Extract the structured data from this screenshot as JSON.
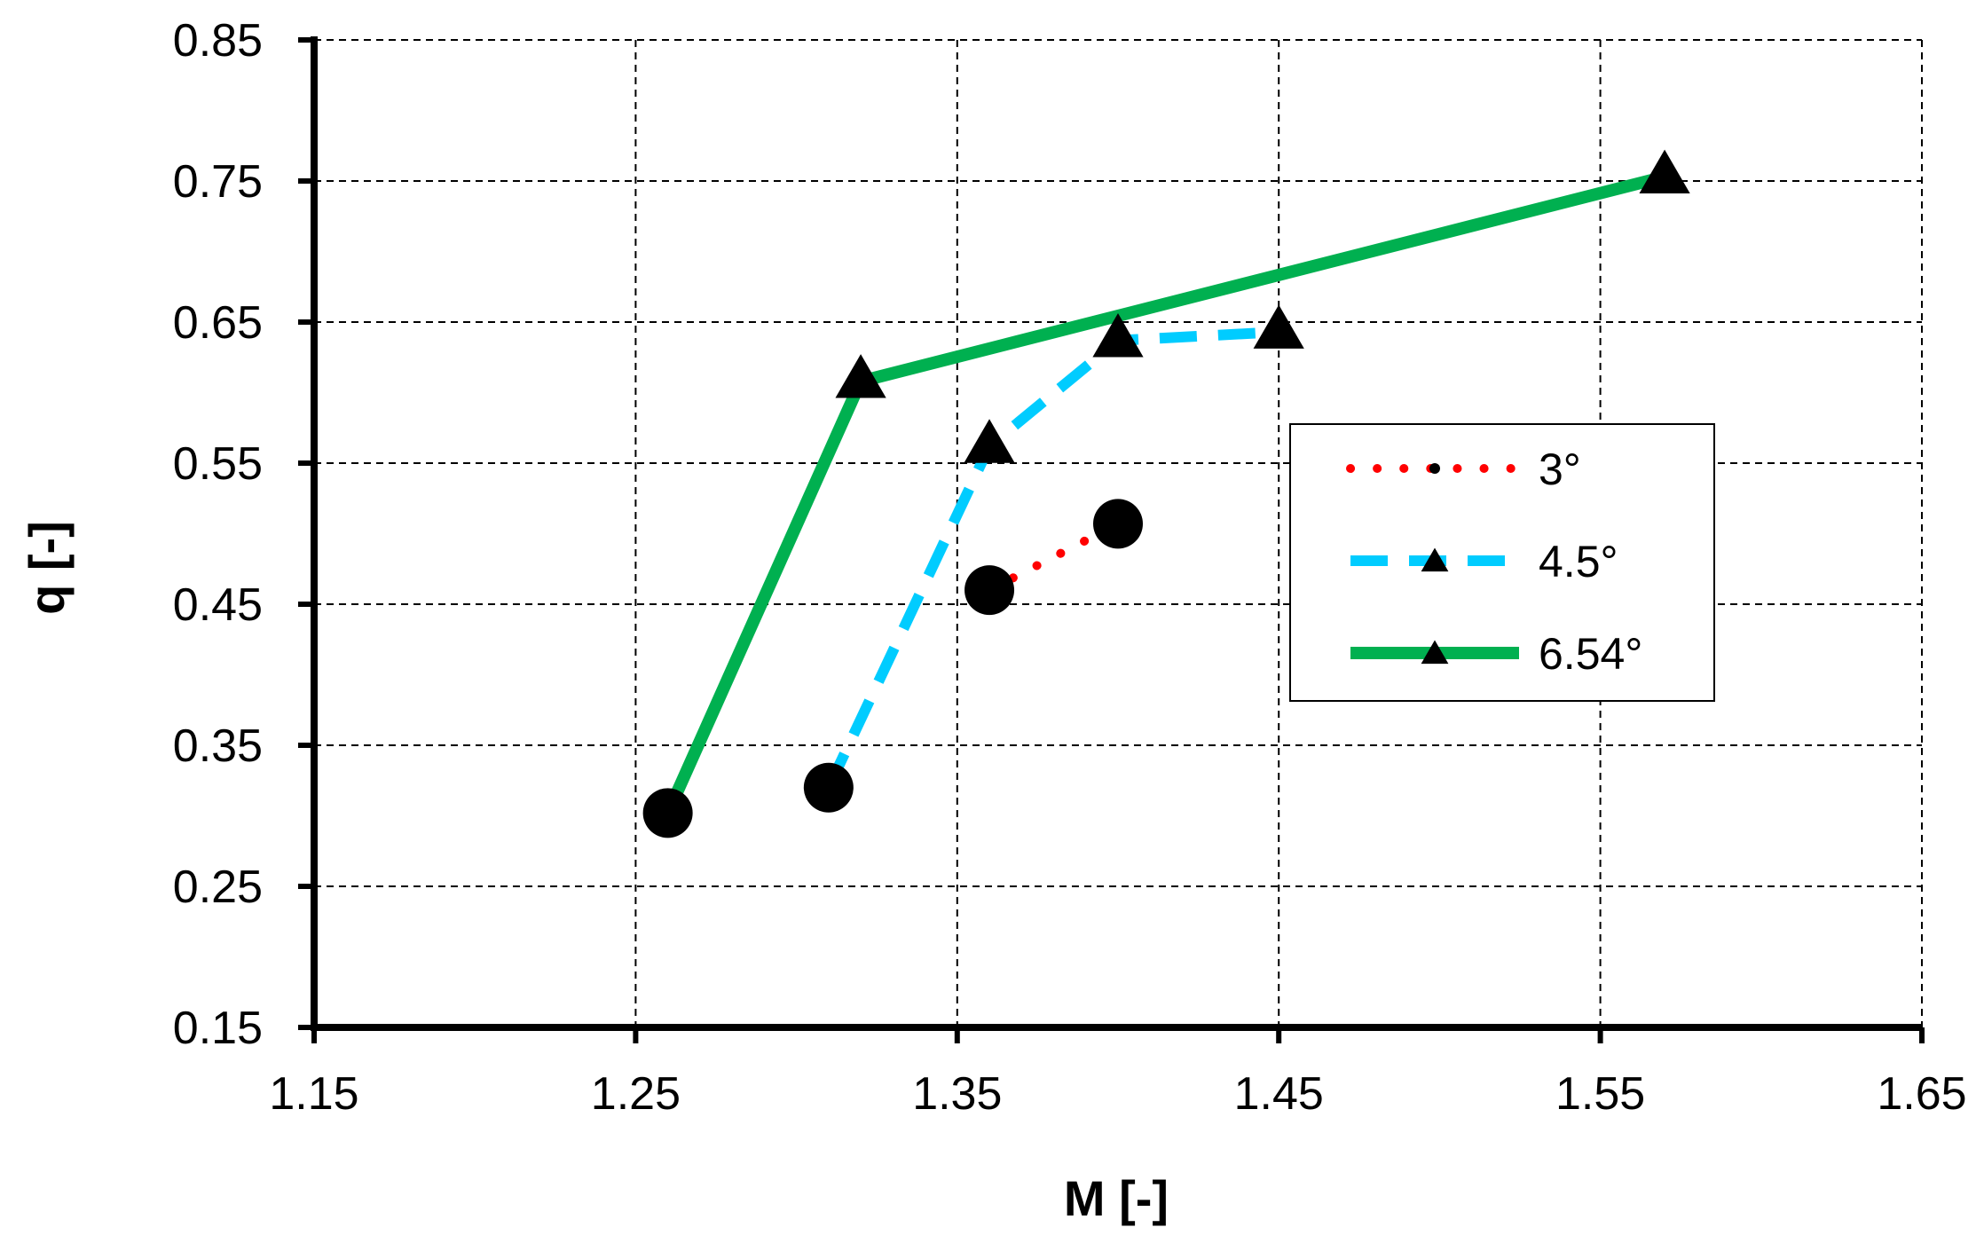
{
  "chart_data": {
    "type": "line",
    "title": "",
    "xlabel": "M [-]",
    "ylabel": "q [-]",
    "xlim": [
      1.15,
      1.65
    ],
    "ylim": [
      0.15,
      0.85
    ],
    "xticks": [
      "1.15",
      "1.25",
      "1.35",
      "1.45",
      "1.55",
      "1.65"
    ],
    "yticks": [
      "0.15",
      "0.25",
      "0.35",
      "0.45",
      "0.55",
      "0.65",
      "0.75",
      "0.85"
    ],
    "grid": true,
    "legend_position": "right",
    "series": [
      {
        "name": "3°",
        "color": "#ff0000",
        "line_style": "dotted",
        "x": [
          1.36,
          1.4
        ],
        "y": [
          0.46,
          0.507
        ],
        "markers": [
          "circle",
          "circle"
        ]
      },
      {
        "name": "4.5°",
        "color": "#00ccff",
        "line_style": "dashed",
        "x": [
          1.31,
          1.36,
          1.4,
          1.45
        ],
        "y": [
          0.32,
          0.562,
          0.637,
          0.643
        ],
        "markers": [
          "circle",
          "triangle",
          "triangle",
          "triangle"
        ]
      },
      {
        "name": "6.54°",
        "color": "#00b050",
        "line_style": "solid",
        "x": [
          1.26,
          1.32,
          1.57
        ],
        "y": [
          0.302,
          0.608,
          0.753
        ],
        "markers": [
          "circle",
          "triangle",
          "triangle"
        ]
      }
    ]
  }
}
